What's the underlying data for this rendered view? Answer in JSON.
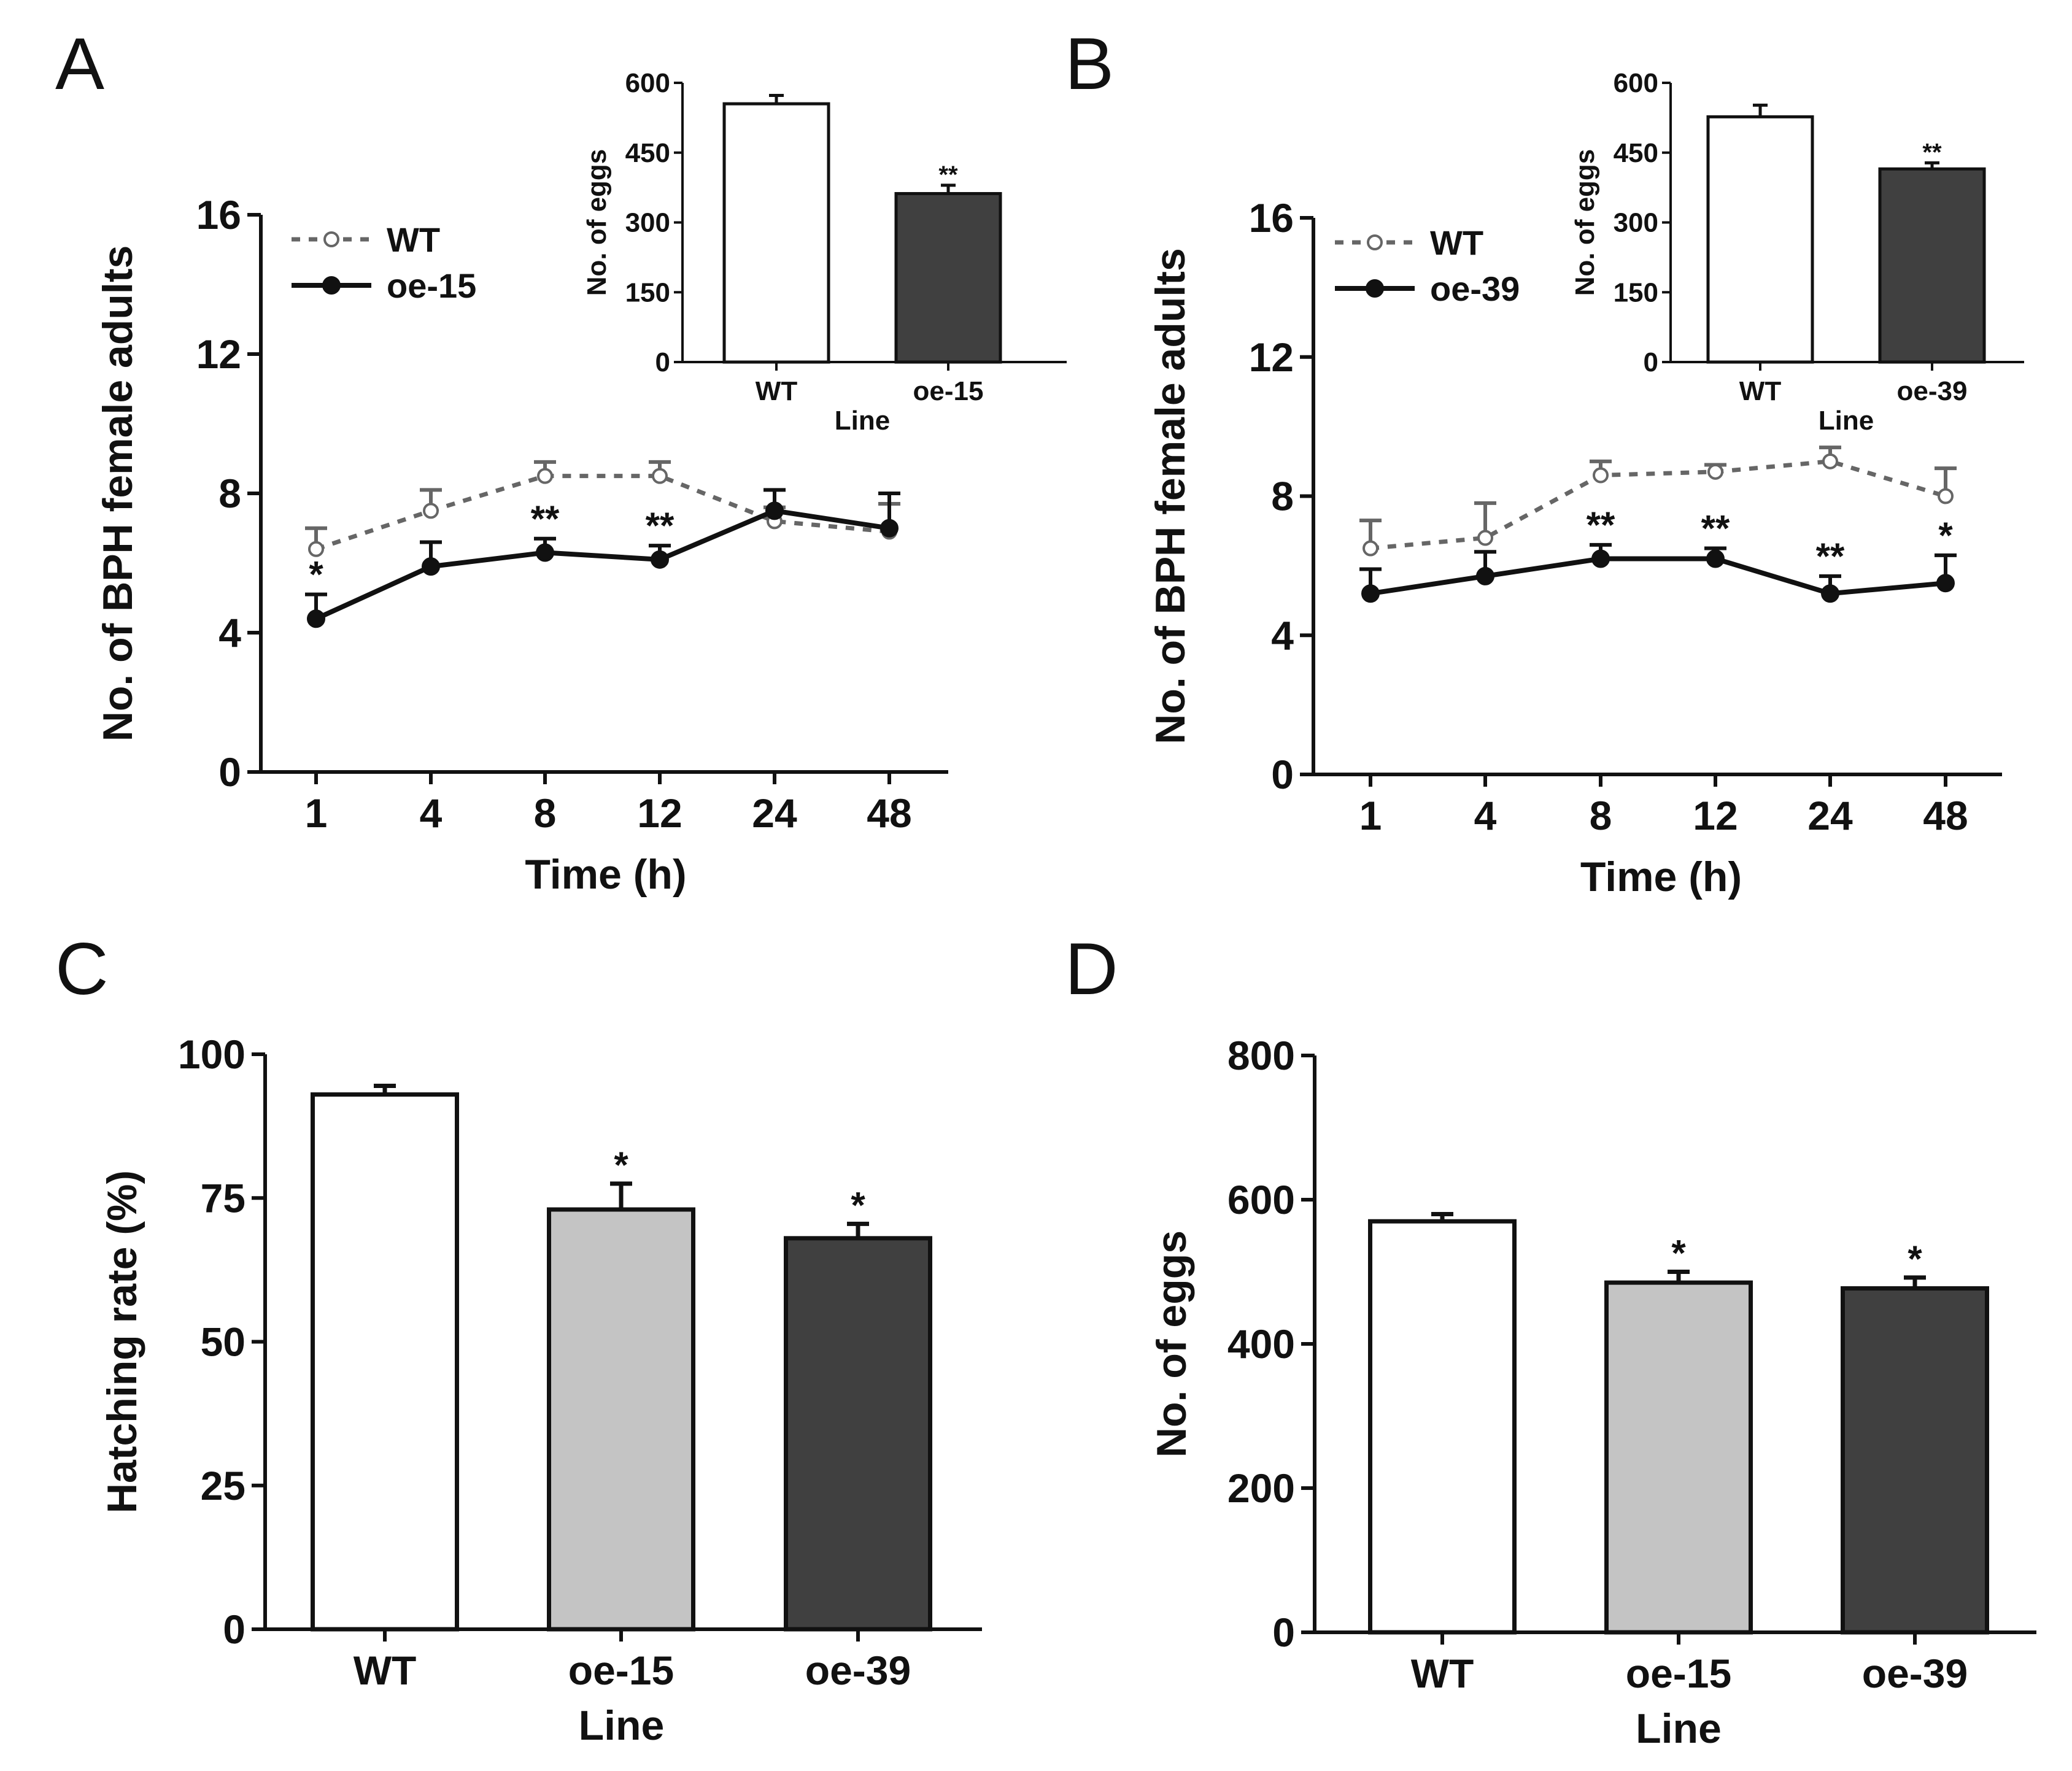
{
  "panels": [
    {
      "id": "A",
      "label": "A",
      "line_chart": {
        "type": "line",
        "xlabel": "Time (h)",
        "ylabel": "No. of BPH female adults",
        "ylim": [
          0,
          16
        ],
        "yticks": [
          0,
          4,
          8,
          12,
          16
        ],
        "categories": [
          "1",
          "4",
          "8",
          "12",
          "24",
          "48"
        ],
        "series": [
          {
            "name": "WT",
            "style": "dashed-open",
            "color": "#666666",
            "values": [
              6.4,
              7.5,
              8.5,
              8.5,
              7.2,
              6.9
            ],
            "errors": [
              0.6,
              0.6,
              0.4,
              0.4,
              0.4,
              0.8
            ]
          },
          {
            "name": "oe-15",
            "style": "solid-filled",
            "color": "#111111",
            "values": [
              4.4,
              5.9,
              6.3,
              6.1,
              7.5,
              7.0
            ],
            "errors": [
              0.7,
              0.7,
              0.4,
              0.4,
              0.6,
              1.0
            ]
          }
        ],
        "significance": [
          "*",
          "",
          "**",
          "**",
          "",
          ""
        ]
      },
      "inset": {
        "type": "bar",
        "xlabel": "Line",
        "ylabel": "No. of eggs",
        "ylim": [
          0,
          600
        ],
        "yticks": [
          0,
          150,
          300,
          450,
          600
        ],
        "categories": [
          "WT",
          "oe-15"
        ],
        "values": [
          555,
          362
        ],
        "errors": [
          18,
          18
        ],
        "colors": [
          "#ffffff",
          "#404040"
        ],
        "significance": [
          "",
          "**"
        ]
      }
    },
    {
      "id": "B",
      "label": "B",
      "line_chart": {
        "type": "line",
        "xlabel": "Time (h)",
        "ylabel": "No. of BPH female adults",
        "ylim": [
          0,
          16
        ],
        "yticks": [
          0,
          4,
          8,
          12,
          16
        ],
        "categories": [
          "1",
          "4",
          "8",
          "12",
          "24",
          "48"
        ],
        "series": [
          {
            "name": "WT",
            "style": "dashed-open",
            "color": "#666666",
            "values": [
              6.5,
              6.8,
              8.6,
              8.7,
              9.0,
              8.0
            ],
            "errors": [
              0.8,
              1.0,
              0.4,
              0.2,
              0.4,
              0.8
            ]
          },
          {
            "name": "oe-39",
            "style": "solid-filled",
            "color": "#111111",
            "values": [
              5.2,
              5.7,
              6.2,
              6.2,
              5.2,
              5.5
            ],
            "errors": [
              0.7,
              0.7,
              0.4,
              0.3,
              0.5,
              0.8
            ]
          }
        ],
        "significance": [
          "",
          "",
          "**",
          "**",
          "**",
          "*"
        ]
      },
      "inset": {
        "type": "bar",
        "xlabel": "Line",
        "ylabel": "No. of eggs",
        "ylim": [
          0,
          600
        ],
        "yticks": [
          0,
          150,
          300,
          450,
          600
        ],
        "categories": [
          "WT",
          "oe-39"
        ],
        "values": [
          527,
          415
        ],
        "errors": [
          25,
          13
        ],
        "colors": [
          "#ffffff",
          "#404040"
        ],
        "significance": [
          "",
          "**"
        ]
      }
    },
    {
      "id": "C",
      "label": "C",
      "bar_chart": {
        "type": "bar",
        "xlabel": "Line",
        "ylabel": "Hatching rate (%)",
        "ylim": [
          0,
          100
        ],
        "yticks": [
          0,
          25,
          50,
          75,
          100
        ],
        "categories": [
          "WT",
          "oe-15",
          "oe-39"
        ],
        "values": [
          93,
          73,
          68
        ],
        "errors": [
          1.5,
          4.5,
          2.5
        ],
        "colors": [
          "#ffffff",
          "#c4c4c4",
          "#404040"
        ],
        "significance": [
          "",
          "*",
          "*"
        ]
      }
    },
    {
      "id": "D",
      "label": "D",
      "bar_chart": {
        "type": "bar",
        "xlabel": "Line",
        "ylabel": "No. of eggs",
        "ylim": [
          0,
          800
        ],
        "yticks": [
          0,
          200,
          400,
          600,
          800
        ],
        "categories": [
          "WT",
          "oe-15",
          "oe-39"
        ],
        "values": [
          570,
          485,
          477
        ],
        "errors": [
          10,
          15,
          15
        ],
        "colors": [
          "#ffffff",
          "#c4c4c4",
          "#404040"
        ],
        "significance": [
          "",
          "*",
          "*"
        ]
      }
    }
  ]
}
